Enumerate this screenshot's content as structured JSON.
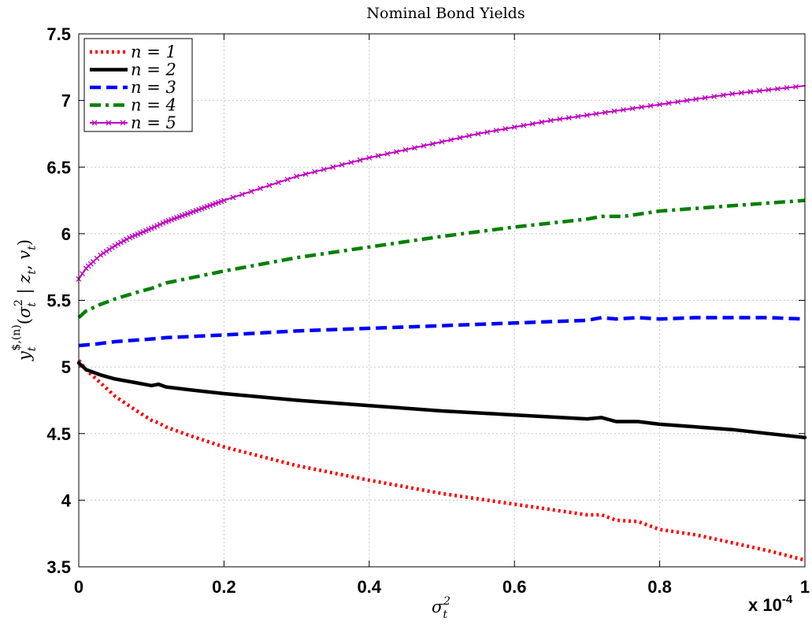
{
  "chart_data": {
    "type": "line",
    "title": "Nominal Bond Yields",
    "xlabel": "σ_t^2",
    "ylabel": "y_t^{$,(n)}(σ_t^2 | z_t, v_t)",
    "x_multiplier_label": "x 10",
    "x_multiplier_exponent": "-4",
    "xlim": [
      0,
      1
    ],
    "ylim": [
      3.5,
      7.5
    ],
    "xticks": [
      "0",
      "0.2",
      "0.4",
      "0.6",
      "0.8",
      "1"
    ],
    "xtick_values": [
      0,
      0.2,
      0.4,
      0.6,
      0.8,
      1
    ],
    "yticks": [
      "3.5",
      "4",
      "4.5",
      "5",
      "5.5",
      "6",
      "6.5",
      "7",
      "7.5"
    ],
    "ytick_values": [
      3.5,
      4,
      4.5,
      5,
      5.5,
      6,
      6.5,
      7,
      7.5
    ],
    "grid": true,
    "legend_position": "top-left",
    "series": [
      {
        "name": "n = 1",
        "color": "#ff0000",
        "style": "dotted",
        "x": [
          0,
          0.01,
          0.03,
          0.05,
          0.08,
          0.1,
          0.11,
          0.12,
          0.15,
          0.2,
          0.3,
          0.4,
          0.5,
          0.6,
          0.7,
          0.72,
          0.74,
          0.77,
          0.8,
          0.85,
          0.9,
          0.95,
          1.0
        ],
        "y": [
          5.05,
          4.98,
          4.88,
          4.78,
          4.67,
          4.6,
          4.58,
          4.55,
          4.49,
          4.4,
          4.26,
          4.15,
          4.05,
          3.97,
          3.89,
          3.89,
          3.85,
          3.84,
          3.78,
          3.74,
          3.68,
          3.62,
          3.55
        ]
      },
      {
        "name": "n = 2",
        "color": "#000000",
        "style": "solid",
        "x": [
          0,
          0.01,
          0.03,
          0.05,
          0.08,
          0.1,
          0.11,
          0.12,
          0.15,
          0.2,
          0.3,
          0.4,
          0.5,
          0.6,
          0.7,
          0.72,
          0.74,
          0.77,
          0.8,
          0.85,
          0.9,
          0.95,
          1.0
        ],
        "y": [
          5.03,
          4.98,
          4.94,
          4.91,
          4.88,
          4.86,
          4.87,
          4.85,
          4.83,
          4.8,
          4.75,
          4.71,
          4.67,
          4.64,
          4.61,
          4.62,
          4.59,
          4.59,
          4.57,
          4.55,
          4.53,
          4.5,
          4.47
        ]
      },
      {
        "name": "n = 3",
        "color": "#0000ff",
        "style": "dashed",
        "x": [
          0,
          0.02,
          0.05,
          0.1,
          0.12,
          0.2,
          0.3,
          0.4,
          0.5,
          0.6,
          0.7,
          0.72,
          0.74,
          0.77,
          0.8,
          0.85,
          0.9,
          0.95,
          1.0
        ],
        "y": [
          5.16,
          5.17,
          5.19,
          5.21,
          5.22,
          5.24,
          5.27,
          5.29,
          5.31,
          5.33,
          5.35,
          5.37,
          5.36,
          5.37,
          5.36,
          5.37,
          5.37,
          5.37,
          5.36
        ]
      },
      {
        "name": "n = 4",
        "color": "#008000",
        "style": "dashdot",
        "x": [
          0,
          0.01,
          0.03,
          0.05,
          0.08,
          0.1,
          0.12,
          0.2,
          0.3,
          0.4,
          0.5,
          0.6,
          0.7,
          0.72,
          0.75,
          0.8,
          0.85,
          0.9,
          0.95,
          1.0
        ],
        "y": [
          5.37,
          5.42,
          5.47,
          5.51,
          5.56,
          5.59,
          5.63,
          5.72,
          5.82,
          5.9,
          5.98,
          6.05,
          6.11,
          6.13,
          6.13,
          6.17,
          6.19,
          6.21,
          6.23,
          6.25
        ]
      },
      {
        "name": "n = 5",
        "color": "#bf00bf",
        "style": "solid-x",
        "x": [
          0,
          0.005,
          0.01,
          0.02,
          0.03,
          0.05,
          0.07,
          0.1,
          0.12,
          0.15,
          0.2,
          0.25,
          0.3,
          0.35,
          0.4,
          0.45,
          0.5,
          0.55,
          0.6,
          0.65,
          0.7,
          0.75,
          0.8,
          0.85,
          0.9,
          0.95,
          1.0
        ],
        "y": [
          5.66,
          5.7,
          5.74,
          5.79,
          5.84,
          5.91,
          5.97,
          6.04,
          6.09,
          6.15,
          6.25,
          6.34,
          6.43,
          6.5,
          6.57,
          6.63,
          6.69,
          6.75,
          6.8,
          6.85,
          6.89,
          6.93,
          6.97,
          7.01,
          7.05,
          7.08,
          7.11
        ]
      }
    ]
  }
}
